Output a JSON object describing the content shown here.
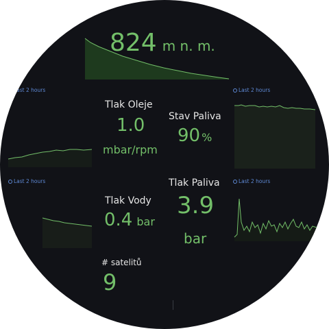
{
  "altitude": {
    "value": "824",
    "unit": "m n. m."
  },
  "time_range": "Last 2 hours",
  "oil_pressure": {
    "label": "Tlak Oleje",
    "value": "1.0",
    "unit": "mbar/rpm"
  },
  "fuel_level": {
    "label": "Stav Paliva",
    "value": "90",
    "unit": "%"
  },
  "water_pressure": {
    "label": "Tlak Vody",
    "value": "0.4",
    "unit": "bar"
  },
  "fuel_pressure": {
    "label": "Tlak Paliva",
    "value": "3.9",
    "unit": "bar"
  },
  "satellites": {
    "label": "# satelitů",
    "value": "9"
  },
  "colors": {
    "background": "#111217",
    "accent": "#73bf69",
    "link": "#5f8ad6"
  }
}
